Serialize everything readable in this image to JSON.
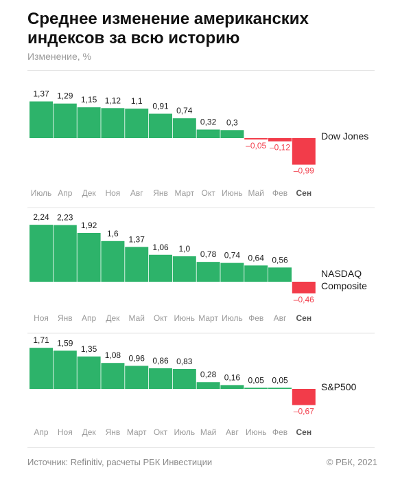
{
  "title": "Среднее изменение американских индексов за всю историю",
  "subtitle": "Изменение, %",
  "footer": {
    "source": "Источник:  Refinitiv, расчеты РБК Инвестиции",
    "copyright": "© РБК, 2021"
  },
  "colors": {
    "positive": "#2db36a",
    "negative": "#f23c4a",
    "tick": "#9a9a9a"
  },
  "chart_data": [
    {
      "type": "bar",
      "series_label": [
        "Dow Jones"
      ],
      "categories": [
        "Июль",
        "Апр",
        "Дек",
        "Ноя",
        "Авг",
        "Янв",
        "Март",
        "Окт",
        "Июнь",
        "Май",
        "Фев",
        "Сен"
      ],
      "values": [
        1.37,
        1.29,
        1.15,
        1.12,
        1.1,
        0.91,
        0.74,
        0.32,
        0.3,
        -0.05,
        -0.12,
        -0.99
      ],
      "labels": [
        "1,37",
        "1,29",
        "1,15",
        "1,12",
        "1,1",
        "0,91",
        "0,74",
        "0,32",
        "0,3",
        "–0,05",
        "–0,12",
        "–0,99"
      ]
    },
    {
      "type": "bar",
      "series_label": [
        "NASDAQ",
        "Composite"
      ],
      "categories": [
        "Ноя",
        "Янв",
        "Апр",
        "Дек",
        "Май",
        "Окт",
        "Июнь",
        "Март",
        "Июль",
        "Фев",
        "Авг",
        "Сен"
      ],
      "values": [
        2.24,
        2.23,
        1.92,
        1.6,
        1.37,
        1.06,
        1.0,
        0.78,
        0.74,
        0.64,
        0.56,
        -0.46
      ],
      "labels": [
        "2,24",
        "2,23",
        "1,92",
        "1,6",
        "1,37",
        "1,06",
        "1,0",
        "0,78",
        "0,74",
        "0,64",
        "0,56",
        "–0,46"
      ]
    },
    {
      "type": "bar",
      "series_label": [
        "S&P500"
      ],
      "categories": [
        "Апр",
        "Ноя",
        "Дек",
        "Янв",
        "Март",
        "Окт",
        "Июль",
        "Май",
        "Авг",
        "Июнь",
        "Фев",
        "Сен"
      ],
      "values": [
        1.71,
        1.59,
        1.35,
        1.08,
        0.96,
        0.86,
        0.83,
        0.28,
        0.16,
        0.05,
        0.05,
        -0.67
      ],
      "labels": [
        "1,71",
        "1,59",
        "1,35",
        "1,08",
        "0,96",
        "0,86",
        "0,83",
        "0,28",
        "0,16",
        "0,05",
        "0,05",
        "–0,67"
      ]
    }
  ]
}
